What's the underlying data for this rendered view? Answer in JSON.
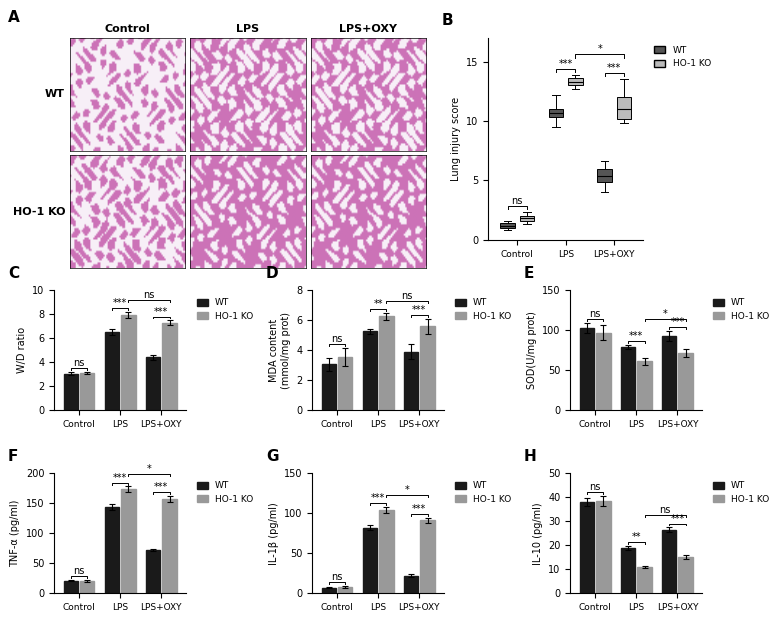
{
  "chart_data": [
    {
      "type": "image_grid",
      "panel": "A",
      "columns": [
        "Control",
        "LPS",
        "LPS+OXY"
      ],
      "rows": [
        "WT",
        "HO-1 KO"
      ]
    },
    {
      "type": "box",
      "panel": "B",
      "ylabel": "Lung injury score",
      "categories": [
        "Control",
        "LPS",
        "LPS+OXY"
      ],
      "ylim": [
        0,
        17
      ],
      "yticks": [
        0,
        5,
        10,
        15
      ],
      "legend": "right",
      "series": [
        {
          "name": "WT",
          "color": "#555555",
          "boxes": [
            {
              "min": 0.8,
              "q1": 1.0,
              "median": 1.2,
              "q3": 1.4,
              "max": 1.6
            },
            {
              "min": 9.5,
              "q1": 10.3,
              "median": 10.7,
              "q3": 11.0,
              "max": 12.2
            },
            {
              "min": 4.0,
              "q1": 4.9,
              "median": 5.4,
              "q3": 6.0,
              "max": 6.6
            }
          ]
        },
        {
          "name": "HO-1 KO",
          "color": "#bbbbbb",
          "boxes": [
            {
              "min": 1.3,
              "q1": 1.6,
              "median": 1.8,
              "q3": 2.0,
              "max": 2.3
            },
            {
              "min": 12.7,
              "q1": 13.0,
              "median": 13.3,
              "q3": 13.6,
              "max": 13.9
            },
            {
              "min": 9.8,
              "q1": 10.2,
              "median": 11.0,
              "q3": 12.0,
              "max": 13.5
            }
          ]
        }
      ],
      "annotations": [
        {
          "text": "ns",
          "from": {
            "category": "Control",
            "series": "WT"
          },
          "to": {
            "category": "Control",
            "series": "HO-1 KO"
          }
        },
        {
          "text": "***",
          "from": {
            "category": "LPS",
            "series": "WT"
          },
          "to": {
            "category": "LPS",
            "series": "HO-1 KO"
          }
        },
        {
          "text": "***",
          "from": {
            "category": "LPS+OXY",
            "series": "WT"
          },
          "to": {
            "category": "LPS+OXY",
            "series": "HO-1 KO"
          }
        },
        {
          "text": "*",
          "from": {
            "category": "LPS",
            "series": "HO-1 KO"
          },
          "to": {
            "category": "LPS+OXY",
            "series": "HO-1 KO"
          }
        }
      ]
    },
    {
      "type": "bar",
      "panel": "C",
      "ylabel": "W/D ratio",
      "categories": [
        "Control",
        "LPS",
        "LPS+OXY"
      ],
      "ylim": [
        0,
        10
      ],
      "yticks": [
        0,
        2,
        4,
        6,
        8,
        10
      ],
      "legend": "right",
      "series": [
        {
          "name": "WT",
          "color": "#1a1a1a",
          "values": [
            3.05,
            6.55,
            4.4
          ],
          "errors": [
            0.15,
            0.25,
            0.2
          ]
        },
        {
          "name": "HO-1 KO",
          "color": "#999999",
          "values": [
            3.1,
            7.95,
            7.3
          ],
          "errors": [
            0.1,
            0.25,
            0.2
          ]
        }
      ],
      "annotations": [
        {
          "text": "ns",
          "from": {
            "category": "Control",
            "series": "WT"
          },
          "to": {
            "category": "Control",
            "series": "HO-1 KO"
          }
        },
        {
          "text": "***",
          "from": {
            "category": "LPS",
            "series": "WT"
          },
          "to": {
            "category": "LPS",
            "series": "HO-1 KO"
          }
        },
        {
          "text": "***",
          "from": {
            "category": "LPS+OXY",
            "series": "WT"
          },
          "to": {
            "category": "LPS+OXY",
            "series": "HO-1 KO"
          }
        },
        {
          "text": "ns",
          "from": {
            "category": "LPS",
            "series": "HO-1 KO"
          },
          "to": {
            "category": "LPS+OXY",
            "series": "HO-1 KO"
          }
        }
      ]
    },
    {
      "type": "bar",
      "panel": "D",
      "ylabel": "MDA content\n(mmol/mg prot)",
      "categories": [
        "Control",
        "LPS",
        "LPS+OXY"
      ],
      "ylim": [
        0,
        8
      ],
      "yticks": [
        0,
        2,
        4,
        6,
        8
      ],
      "legend": "right",
      "series": [
        {
          "name": "WT",
          "color": "#1a1a1a",
          "values": [
            3.05,
            5.25,
            3.9
          ],
          "errors": [
            0.45,
            0.15,
            0.5
          ]
        },
        {
          "name": "HO-1 KO",
          "color": "#999999",
          "values": [
            3.55,
            6.25,
            5.6
          ],
          "errors": [
            0.6,
            0.25,
            0.5
          ]
        }
      ],
      "annotations": [
        {
          "text": "ns",
          "from": {
            "category": "Control",
            "series": "WT"
          },
          "to": {
            "category": "Control",
            "series": "HO-1 KO"
          }
        },
        {
          "text": "**",
          "from": {
            "category": "LPS",
            "series": "WT"
          },
          "to": {
            "category": "LPS",
            "series": "HO-1 KO"
          }
        },
        {
          "text": "***",
          "from": {
            "category": "LPS+OXY",
            "series": "WT"
          },
          "to": {
            "category": "LPS+OXY",
            "series": "HO-1 KO"
          }
        },
        {
          "text": "ns",
          "from": {
            "category": "LPS",
            "series": "HO-1 KO"
          },
          "to": {
            "category": "LPS+OXY",
            "series": "HO-1 KO"
          }
        }
      ]
    },
    {
      "type": "bar",
      "panel": "E",
      "ylabel": "SOD(U/mg prot)",
      "categories": [
        "Control",
        "LPS",
        "LPS+OXY"
      ],
      "ylim": [
        0,
        150
      ],
      "yticks": [
        0,
        50,
        100,
        150
      ],
      "legend": "right",
      "series": [
        {
          "name": "WT",
          "color": "#1a1a1a",
          "values": [
            103,
            79,
            93
          ],
          "errors": [
            6,
            3,
            6
          ]
        },
        {
          "name": "HO-1 KO",
          "color": "#999999",
          "values": [
            97,
            61,
            72
          ],
          "errors": [
            9,
            4,
            5
          ]
        }
      ],
      "annotations": [
        {
          "text": "ns",
          "from": {
            "category": "Control",
            "series": "WT"
          },
          "to": {
            "category": "Control",
            "series": "HO-1 KO"
          }
        },
        {
          "text": "***",
          "from": {
            "category": "LPS",
            "series": "WT"
          },
          "to": {
            "category": "LPS",
            "series": "HO-1 KO"
          }
        },
        {
          "text": "***",
          "from": {
            "category": "LPS+OXY",
            "series": "WT"
          },
          "to": {
            "category": "LPS+OXY",
            "series": "HO-1 KO"
          }
        },
        {
          "text": "*",
          "from": {
            "category": "LPS",
            "series": "HO-1 KO"
          },
          "to": {
            "category": "LPS+OXY",
            "series": "HO-1 KO"
          }
        }
      ]
    },
    {
      "type": "bar",
      "panel": "F",
      "ylabel": "TNF-α (pg/ml)",
      "categories": [
        "Control",
        "LPS",
        "LPS+OXY"
      ],
      "ylim": [
        0,
        200
      ],
      "yticks": [
        0,
        50,
        100,
        150,
        200
      ],
      "legend": "right",
      "series": [
        {
          "name": "WT",
          "color": "#1a1a1a",
          "values": [
            21,
            143,
            72
          ],
          "errors": [
            1.5,
            5,
            2
          ]
        },
        {
          "name": "HO-1 KO",
          "color": "#999999",
          "values": [
            20,
            173,
            157
          ],
          "errors": [
            1.5,
            5,
            5
          ]
        }
      ],
      "annotations": [
        {
          "text": "ns",
          "from": {
            "category": "Control",
            "series": "WT"
          },
          "to": {
            "category": "Control",
            "series": "HO-1 KO"
          }
        },
        {
          "text": "***",
          "from": {
            "category": "LPS",
            "series": "WT"
          },
          "to": {
            "category": "LPS",
            "series": "HO-1 KO"
          }
        },
        {
          "text": "***",
          "from": {
            "category": "LPS+OXY",
            "series": "WT"
          },
          "to": {
            "category": "LPS+OXY",
            "series": "HO-1 KO"
          }
        },
        {
          "text": "*",
          "from": {
            "category": "LPS",
            "series": "HO-1 KO"
          },
          "to": {
            "category": "LPS+OXY",
            "series": "HO-1 KO"
          }
        }
      ]
    },
    {
      "type": "bar",
      "panel": "G",
      "ylabel": "IL-1β (pg/ml)",
      "categories": [
        "Control",
        "LPS",
        "LPS+OXY"
      ],
      "ylim": [
        0,
        150
      ],
      "yticks": [
        0,
        50,
        100,
        150
      ],
      "legend": "right",
      "series": [
        {
          "name": "WT",
          "color": "#1a1a1a",
          "values": [
            7,
            82,
            22
          ],
          "errors": [
            1,
            3,
            2
          ]
        },
        {
          "name": "HO-1 KO",
          "color": "#999999",
          "values": [
            8,
            104,
            91
          ],
          "errors": [
            1,
            4,
            3
          ]
        }
      ],
      "annotations": [
        {
          "text": "ns",
          "from": {
            "category": "Control",
            "series": "WT"
          },
          "to": {
            "category": "Control",
            "series": "HO-1 KO"
          }
        },
        {
          "text": "***",
          "from": {
            "category": "LPS",
            "series": "WT"
          },
          "to": {
            "category": "LPS",
            "series": "HO-1 KO"
          }
        },
        {
          "text": "***",
          "from": {
            "category": "LPS+OXY",
            "series": "WT"
          },
          "to": {
            "category": "LPS+OXY",
            "series": "HO-1 KO"
          }
        },
        {
          "text": "*",
          "from": {
            "category": "LPS",
            "series": "HO-1 KO"
          },
          "to": {
            "category": "LPS+OXY",
            "series": "HO-1 KO"
          }
        }
      ]
    },
    {
      "type": "bar",
      "panel": "H",
      "ylabel": "IL-10 (pg/ml)",
      "categories": [
        "Control",
        "LPS",
        "LPS+OXY"
      ],
      "ylim": [
        0,
        50
      ],
      "yticks": [
        0,
        10,
        20,
        30,
        40,
        50
      ],
      "legend": "right",
      "series": [
        {
          "name": "WT",
          "color": "#1a1a1a",
          "values": [
            38,
            19,
            26.5
          ],
          "errors": [
            1.5,
            0.8,
            1
          ]
        },
        {
          "name": "HO-1 KO",
          "color": "#999999",
          "values": [
            38.5,
            11,
            15
          ],
          "errors": [
            2,
            0.5,
            0.8
          ]
        }
      ],
      "annotations": [
        {
          "text": "ns",
          "from": {
            "category": "Control",
            "series": "WT"
          },
          "to": {
            "category": "Control",
            "series": "HO-1 KO"
          }
        },
        {
          "text": "**",
          "from": {
            "category": "LPS",
            "series": "WT"
          },
          "to": {
            "category": "LPS",
            "series": "HO-1 KO"
          }
        },
        {
          "text": "***",
          "from": {
            "category": "LPS+OXY",
            "series": "WT"
          },
          "to": {
            "category": "LPS+OXY",
            "series": "HO-1 KO"
          }
        },
        {
          "text": "ns",
          "from": {
            "category": "LPS",
            "series": "HO-1 KO"
          },
          "to": {
            "category": "LPS+OXY",
            "series": "HO-1 KO"
          }
        }
      ]
    }
  ]
}
